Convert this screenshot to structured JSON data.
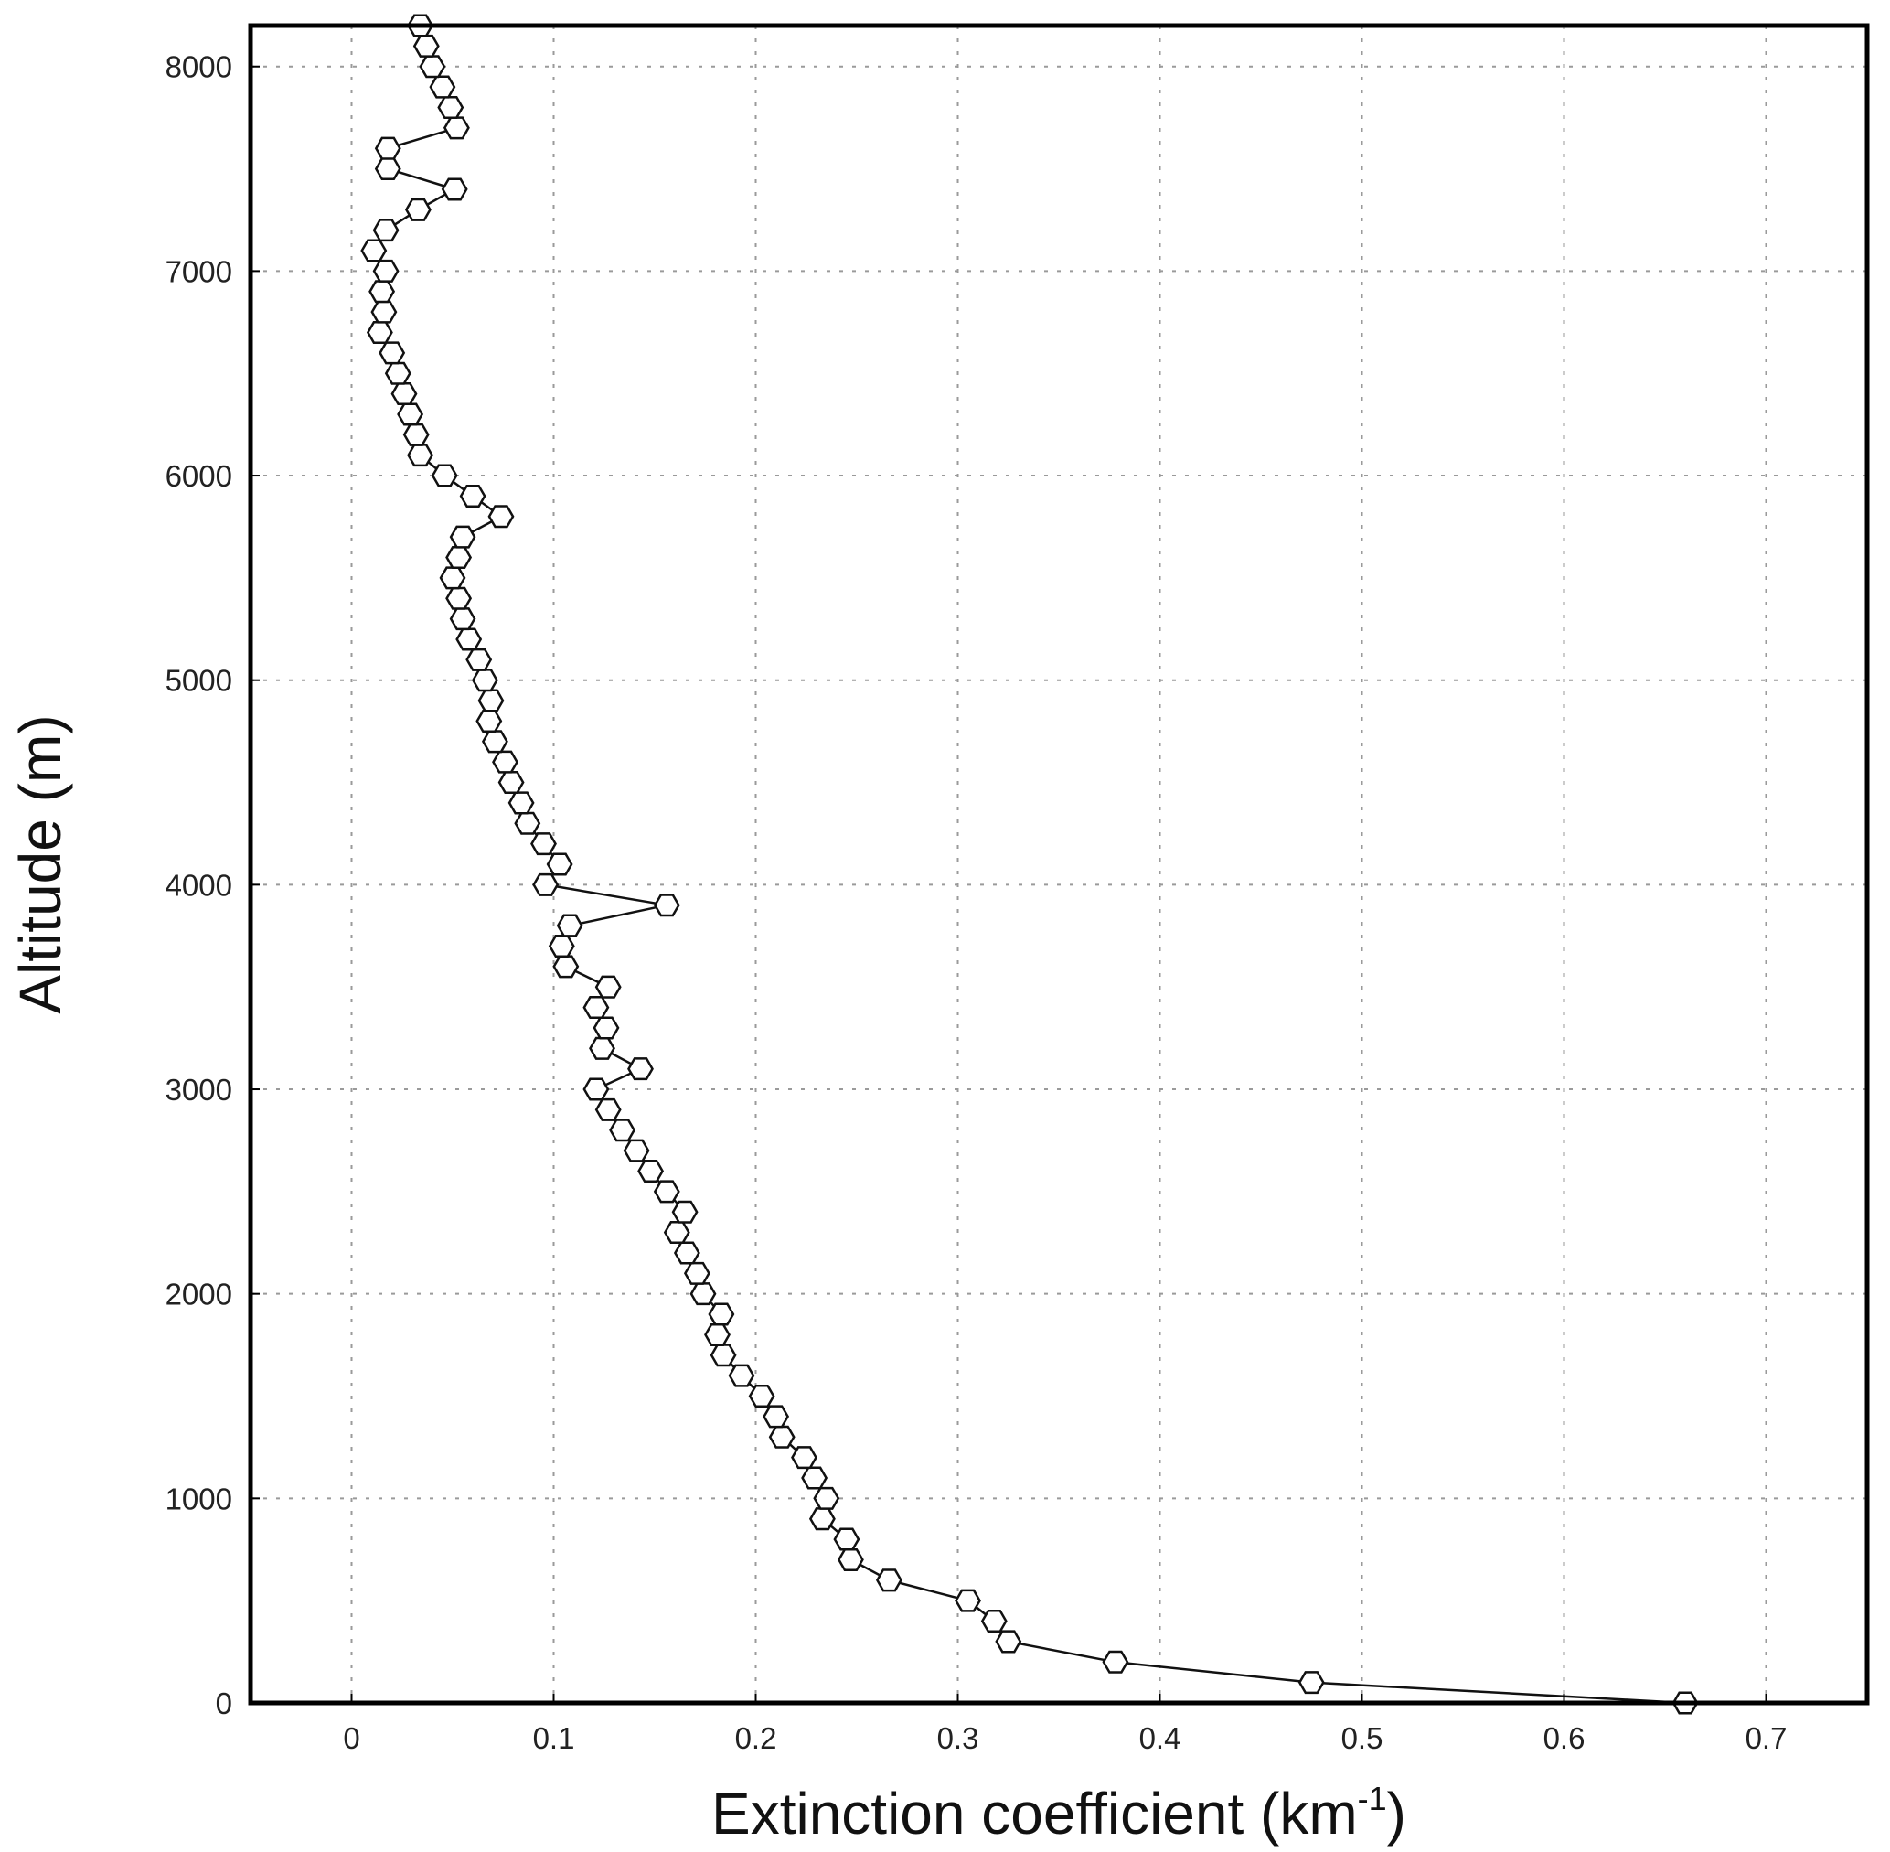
{
  "chart_data": {
    "type": "line",
    "title": "",
    "xlabel": "Extinction coefficient (km",
    "xlabel_sup": "-1",
    "xlabel_close": ")",
    "ylabel": "Altitude (m)",
    "xlim": [
      -0.05,
      0.75
    ],
    "ylim": [
      0,
      8200
    ],
    "grid": true,
    "x_ticks": [
      0,
      0.1,
      0.2,
      0.3,
      0.4,
      0.5,
      0.6,
      0.7
    ],
    "x_tick_labels": [
      "0",
      "0.1",
      "0.2",
      "0.3",
      "0.4",
      "0.5",
      "0.6",
      "0.7"
    ],
    "y_ticks": [
      0,
      1000,
      2000,
      3000,
      4000,
      5000,
      6000,
      7000,
      8000
    ],
    "y_tick_labels": [
      "0",
      "1000",
      "2000",
      "3000",
      "4000",
      "5000",
      "6000",
      "7000",
      "8000"
    ],
    "marker": "hexagon-open",
    "series": [
      {
        "points": [
          [
            0.66,
            0
          ],
          [
            0.475,
            100
          ],
          [
            0.378,
            200
          ],
          [
            0.325,
            300
          ],
          [
            0.318,
            400
          ],
          [
            0.305,
            500
          ],
          [
            0.266,
            600
          ],
          [
            0.247,
            700
          ],
          [
            0.245,
            800
          ],
          [
            0.233,
            900
          ],
          [
            0.235,
            1000
          ],
          [
            0.229,
            1100
          ],
          [
            0.224,
            1200
          ],
          [
            0.213,
            1300
          ],
          [
            0.21,
            1400
          ],
          [
            0.203,
            1500
          ],
          [
            0.193,
            1600
          ],
          [
            0.184,
            1700
          ],
          [
            0.181,
            1800
          ],
          [
            0.183,
            1900
          ],
          [
            0.174,
            2000
          ],
          [
            0.171,
            2100
          ],
          [
            0.166,
            2200
          ],
          [
            0.161,
            2300
          ],
          [
            0.165,
            2400
          ],
          [
            0.156,
            2500
          ],
          [
            0.148,
            2600
          ],
          [
            0.141,
            2700
          ],
          [
            0.134,
            2800
          ],
          [
            0.127,
            2900
          ],
          [
            0.121,
            3000
          ],
          [
            0.143,
            3100
          ],
          [
            0.124,
            3200
          ],
          [
            0.126,
            3300
          ],
          [
            0.121,
            3400
          ],
          [
            0.127,
            3500
          ],
          [
            0.106,
            3600
          ],
          [
            0.104,
            3700
          ],
          [
            0.108,
            3800
          ],
          [
            0.156,
            3900
          ],
          [
            0.096,
            4000
          ],
          [
            0.103,
            4100
          ],
          [
            0.095,
            4200
          ],
          [
            0.087,
            4300
          ],
          [
            0.084,
            4400
          ],
          [
            0.079,
            4500
          ],
          [
            0.076,
            4600
          ],
          [
            0.071,
            4700
          ],
          [
            0.068,
            4800
          ],
          [
            0.069,
            4900
          ],
          [
            0.066,
            5000
          ],
          [
            0.063,
            5100
          ],
          [
            0.058,
            5200
          ],
          [
            0.055,
            5300
          ],
          [
            0.053,
            5400
          ],
          [
            0.05,
            5500
          ],
          [
            0.053,
            5600
          ],
          [
            0.055,
            5700
          ],
          [
            0.074,
            5800
          ],
          [
            0.06,
            5900
          ],
          [
            0.046,
            6000
          ],
          [
            0.034,
            6100
          ],
          [
            0.032,
            6200
          ],
          [
            0.029,
            6300
          ],
          [
            0.026,
            6400
          ],
          [
            0.023,
            6500
          ],
          [
            0.02,
            6600
          ],
          [
            0.014,
            6700
          ],
          [
            0.016,
            6800
          ],
          [
            0.015,
            6900
          ],
          [
            0.017,
            7000
          ],
          [
            0.011,
            7100
          ],
          [
            0.017,
            7200
          ],
          [
            0.033,
            7300
          ],
          [
            0.051,
            7400
          ],
          [
            0.018,
            7500
          ],
          [
            0.018,
            7600
          ],
          [
            0.052,
            7700
          ],
          [
            0.049,
            7800
          ],
          [
            0.045,
            7900
          ],
          [
            0.04,
            8000
          ],
          [
            0.037,
            8100
          ],
          [
            0.034,
            8200
          ]
        ]
      }
    ]
  }
}
